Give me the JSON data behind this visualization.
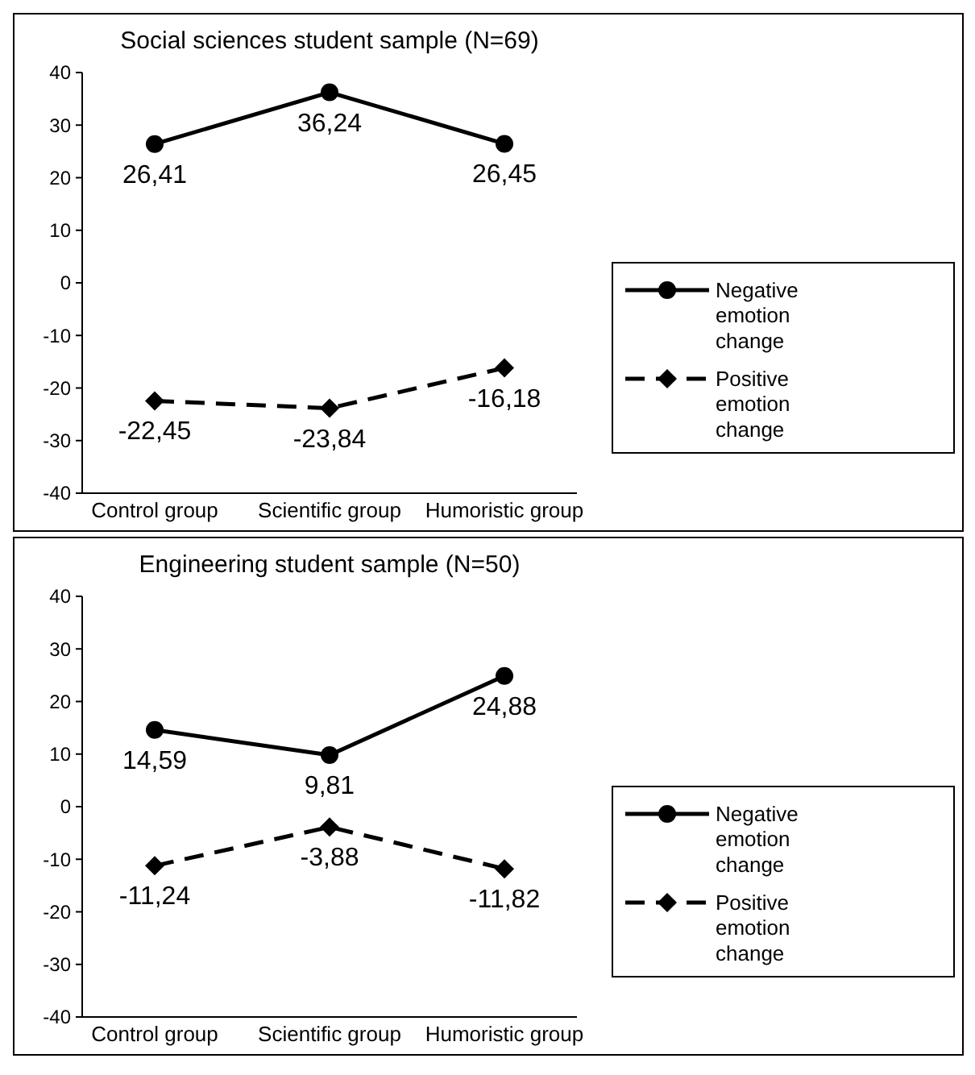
{
  "chart_data": [
    {
      "type": "line",
      "title": "Social sciences student sample (N=69)",
      "categories": [
        "Control group",
        "Scientific group",
        "Humoristic group"
      ],
      "series": [
        {
          "name": "Negative emotion change",
          "color": "#000000",
          "marker": "circle",
          "line_style": "solid",
          "values": [
            26.41,
            36.24,
            26.45
          ],
          "value_labels": [
            "26,41",
            "36,24",
            "26,45"
          ]
        },
        {
          "name": "Positive emotion change",
          "color": "#000000",
          "marker": "diamond",
          "line_style": "dashed",
          "values": [
            -22.45,
            -23.84,
            -16.18
          ],
          "value_labels": [
            "-22,45",
            "-23,84",
            "-16,18"
          ]
        }
      ],
      "ylim": [
        -40,
        40
      ],
      "yticks": [
        -40,
        -30,
        -20,
        -10,
        0,
        10,
        20,
        30,
        40
      ],
      "grid": false,
      "legend": "right"
    },
    {
      "type": "line",
      "title": "Engineering student sample (N=50)",
      "categories": [
        "Control group",
        "Scientific group",
        "Humoristic group"
      ],
      "series": [
        {
          "name": "Negative emotion change",
          "color": "#000000",
          "marker": "circle",
          "line_style": "solid",
          "values": [
            14.59,
            9.81,
            24.88
          ],
          "value_labels": [
            "14,59",
            "9,81",
            "24,88"
          ]
        },
        {
          "name": "Positive emotion change",
          "color": "#000000",
          "marker": "diamond",
          "line_style": "dashed",
          "values": [
            -11.24,
            -3.88,
            -11.82
          ],
          "value_labels": [
            "-11,24",
            "-3,88",
            "-11,82"
          ]
        }
      ],
      "ylim": [
        -40,
        40
      ],
      "yticks": [
        -40,
        -30,
        -20,
        -10,
        0,
        10,
        20,
        30,
        40
      ],
      "grid": false,
      "legend": "right"
    }
  ]
}
